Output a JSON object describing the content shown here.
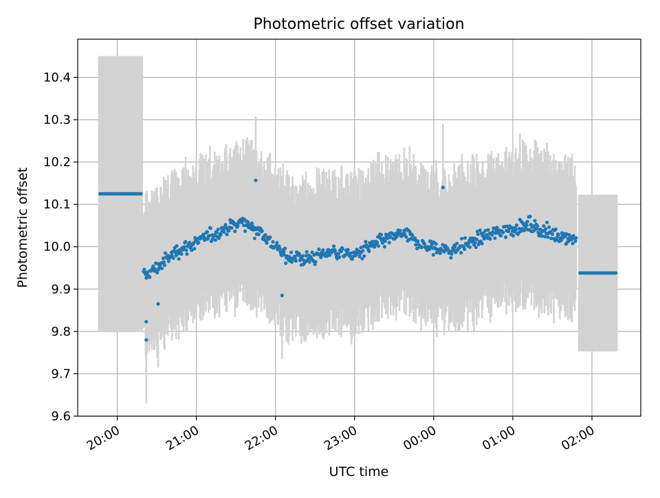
{
  "chart_data": {
    "type": "scatter",
    "title": "Photometric offset variation",
    "xlabel": "UTC time",
    "ylabel": "Photometric offset",
    "x_ticks": [
      "20:00",
      "21:00",
      "22:00",
      "23:00",
      "00:00",
      "01:00",
      "02:00"
    ],
    "x_tick_times": [
      "2000-01-01T20:00",
      "2000-01-01T21:00",
      "2000-01-01T22:00",
      "2000-01-01T23:00",
      "2000-01-02T00:00",
      "2000-01-02T01:00",
      "2000-01-02T02:00"
    ],
    "xlim": [
      "2000-01-01T19:30",
      "2000-01-02T02:37"
    ],
    "y_ticks": [
      "9.6",
      "9.7",
      "9.8",
      "9.9",
      "10.0",
      "10.1",
      "10.2",
      "10.3",
      "10.4"
    ],
    "ylim": [
      9.6,
      10.49
    ],
    "grid": true,
    "colors": {
      "points": "#1f77b4",
      "error_bars": "#d3d3d3",
      "grid": "#b0b0b0"
    },
    "series": [
      {
        "segments": [
          {
            "start": "2000-01-01T19:47",
            "end": "2000-01-01T20:18",
            "y": 10.125,
            "error": 0.325
          },
          {
            "start": "2000-01-01T20:20",
            "end": "2000-01-02T01:48",
            "trend": [
              [
                20.33,
                9.93
              ],
              [
                20.5,
                9.95
              ],
              [
                20.75,
                9.99
              ],
              [
                21.0,
                10.01
              ],
              [
                21.33,
                10.04
              ],
              [
                21.6,
                10.06
              ],
              [
                21.85,
                10.03
              ],
              [
                22.1,
                9.98
              ],
              [
                22.4,
                9.97
              ],
              [
                22.7,
                9.99
              ],
              [
                23.0,
                9.98
              ],
              [
                23.3,
                10.01
              ],
              [
                23.6,
                10.03
              ],
              [
                23.9,
                10.0
              ],
              [
                24.2,
                9.99
              ],
              [
                24.6,
                10.02
              ],
              [
                24.9,
                10.04
              ],
              [
                25.2,
                10.05
              ],
              [
                25.5,
                10.03
              ],
              [
                25.8,
                10.02
              ]
            ],
            "scatter": 0.035,
            "error": 0.17,
            "count": 640
          },
          {
            "start": "2000-01-02T01:51",
            "end": "2000-01-02T02:18",
            "y": 9.938,
            "error": 0.185
          }
        ],
        "notable_points": [
          {
            "x": "2000-01-01T20:22",
            "y": 9.78
          },
          {
            "x": "2000-01-01T20:22",
            "y": 9.823
          },
          {
            "x": "2000-01-01T20:31",
            "y": 9.865
          },
          {
            "x": "2000-01-01T21:45",
            "y": 10.157
          },
          {
            "x": "2000-01-02T00:07",
            "y": 10.14
          },
          {
            "x": "2000-01-01T22:05",
            "y": 9.885
          }
        ]
      }
    ]
  }
}
